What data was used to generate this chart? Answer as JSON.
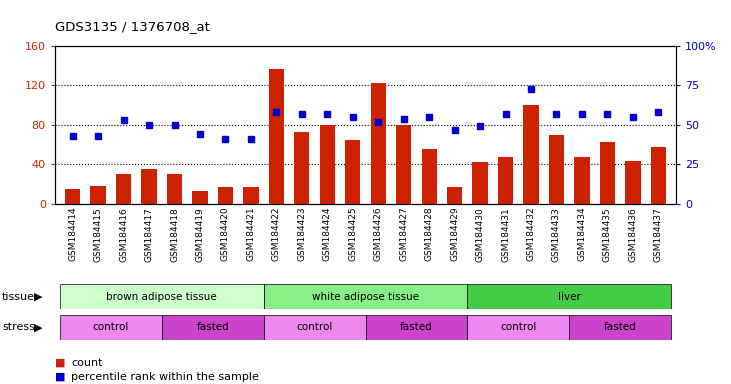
{
  "title": "GDS3135 / 1376708_at",
  "samples": [
    "GSM184414",
    "GSM184415",
    "GSM184416",
    "GSM184417",
    "GSM184418",
    "GSM184419",
    "GSM184420",
    "GSM184421",
    "GSM184422",
    "GSM184423",
    "GSM184424",
    "GSM184425",
    "GSM184426",
    "GSM184427",
    "GSM184428",
    "GSM184429",
    "GSM184430",
    "GSM184431",
    "GSM184432",
    "GSM184433",
    "GSM184434",
    "GSM184435",
    "GSM184436",
    "GSM184437"
  ],
  "counts": [
    15,
    18,
    30,
    35,
    30,
    13,
    17,
    17,
    137,
    73,
    80,
    65,
    122,
    80,
    55,
    17,
    42,
    47,
    100,
    70,
    47,
    63,
    43,
    57
  ],
  "percentile": [
    43,
    43,
    53,
    50,
    50,
    44,
    41,
    41,
    58,
    57,
    57,
    55,
    52,
    54,
    55,
    47,
    49,
    57,
    73,
    57,
    57,
    57,
    55,
    58
  ],
  "bar_color": "#cc2200",
  "dot_color": "#0000cc",
  "ylim_left": [
    0,
    160
  ],
  "ylim_right": [
    0,
    100
  ],
  "yticks_left": [
    0,
    40,
    80,
    120,
    160
  ],
  "yticks_right": [
    0,
    25,
    50,
    75,
    100
  ],
  "tissue_groups": [
    {
      "label": "brown adipose tissue",
      "start": 0,
      "end": 7,
      "color": "#ccffcc"
    },
    {
      "label": "white adipose tissue",
      "start": 8,
      "end": 15,
      "color": "#88ee88"
    },
    {
      "label": "liver",
      "start": 16,
      "end": 23,
      "color": "#44cc44"
    }
  ],
  "stress_groups": [
    {
      "label": "control",
      "start": 0,
      "end": 3,
      "color": "#ee88ee"
    },
    {
      "label": "fasted",
      "start": 4,
      "end": 7,
      "color": "#cc44cc"
    },
    {
      "label": "control",
      "start": 8,
      "end": 11,
      "color": "#ee88ee"
    },
    {
      "label": "fasted",
      "start": 12,
      "end": 15,
      "color": "#cc44cc"
    },
    {
      "label": "control",
      "start": 16,
      "end": 19,
      "color": "#ee88ee"
    },
    {
      "label": "fasted",
      "start": 20,
      "end": 23,
      "color": "#cc44cc"
    }
  ],
  "bg_color": "#e8e8e8",
  "plot_bg": "#ffffff"
}
